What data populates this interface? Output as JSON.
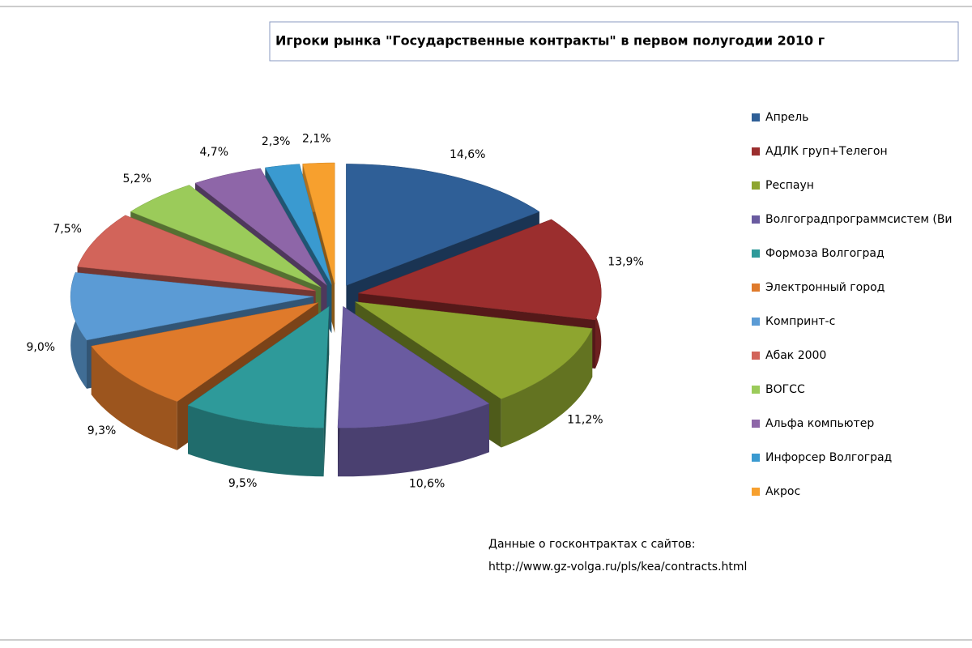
{
  "chart_data": {
    "type": "pie",
    "title": "Игроки рынка \"Государственные контракты\" в первом полугодии 2010 г",
    "categories": [
      "Апрель",
      "АДЛК груп+Телегон",
      "Респаун",
      "Волгоградпрограммсистем (Ви",
      "Формоза Волгоград",
      "Электронный город",
      "Компринт-с",
      "Абак 2000",
      "ВОГСС",
      "Альфа компьютер",
      "Инфорсер Волгоград",
      "Акрос"
    ],
    "values": [
      14.6,
      13.9,
      11.2,
      10.6,
      9.5,
      9.3,
      9.0,
      7.5,
      5.2,
      4.7,
      2.3,
      2.1
    ],
    "value_labels": [
      "14,6%",
      "13,9%",
      "11,2%",
      "10,6%",
      "9,5%",
      "9,3%",
      "9,0%",
      "7,5%",
      "5,2%",
      "4,7%",
      "2,3%",
      "2,1%"
    ],
    "colors": [
      "#2f5f97",
      "#9b2e2e",
      "#8ea52f",
      "#6a5ba0",
      "#2e9a9a",
      "#df7a2b",
      "#5b9bd5",
      "#d2645a",
      "#9bcb5a",
      "#8e66a8",
      "#3a9ad0",
      "#f7a02e"
    ],
    "legend": "right",
    "note": [
      "Данные о госконтрактах с сайтов:",
      "http://www.gz-volga.ru/pls/kea/contracts.html"
    ]
  }
}
